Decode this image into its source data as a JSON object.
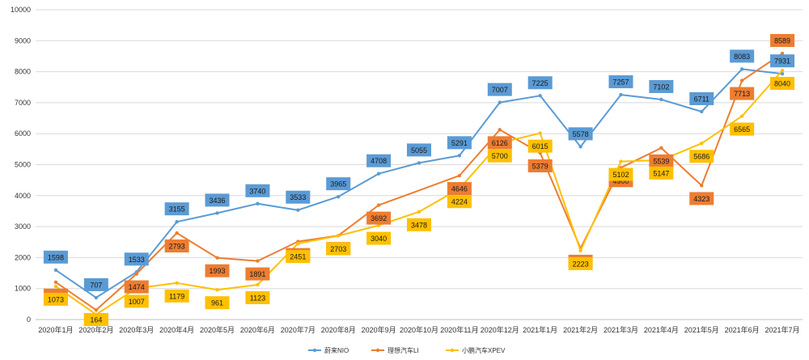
{
  "chart_data": {
    "type": "line",
    "x_categories": [
      "2020年1月",
      "2020年2月",
      "2020年3月",
      "2020年4月",
      "2020年5月",
      "2020年6月",
      "2020年7月",
      "2020年8月",
      "2020年9月",
      "2020年10月",
      "2020年11月",
      "2020年12月",
      "2021年1月",
      "2021年2月",
      "2021年3月",
      "2021年4月",
      "2021年5月",
      "2021年6月",
      "2021年7月"
    ],
    "ylim": [
      0,
      10000
    ],
    "y_ticks": [
      0,
      1000,
      2000,
      3000,
      4000,
      5000,
      6000,
      7000,
      8000,
      9000,
      10000
    ],
    "grid": true,
    "legend_position": "bottom",
    "series": [
      {
        "name": "蔚来NIO",
        "color": "#5b9bd5",
        "label_bg": "#5b9bd5",
        "values": [
          1598,
          707,
          1533,
          3155,
          3436,
          3740,
          3533,
          3965,
          4708,
          5055,
          5291,
          7007,
          7225,
          5578,
          7257,
          7102,
          6711,
          8083,
          7931
        ]
      },
      {
        "name": "理想汽车LI",
        "color": "#ed7d31",
        "label_bg": "#ed7d31",
        "values": [
          1207,
          307,
          1474,
          2793,
          1993,
          1891,
          2516,
          2711,
          3692,
          null,
          4646,
          6126,
          5379,
          2300,
          4900,
          5539,
          4323,
          7713,
          8589
        ]
      },
      {
        "name": "小鹏汽车XPEV",
        "color": "#ffc000",
        "label_bg": "#ffc000",
        "values": [
          1073,
          164,
          1007,
          1179,
          961,
          1123,
          2451,
          2703,
          3040,
          3478,
          4224,
          5700,
          6015,
          2223,
          5102,
          5147,
          5686,
          6565,
          8040
        ]
      }
    ]
  }
}
